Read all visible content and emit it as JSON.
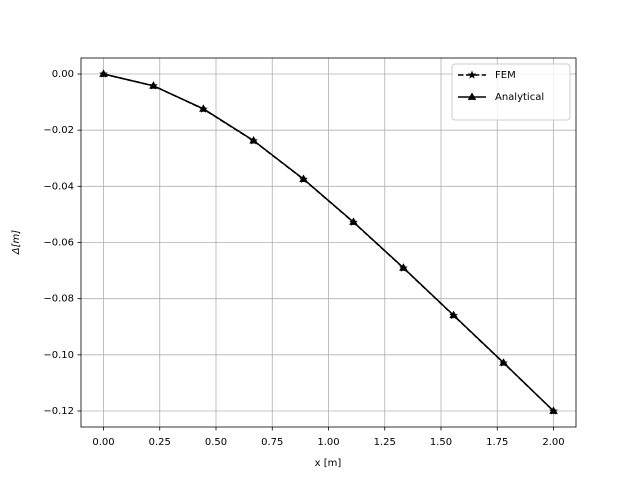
{
  "chart_data": {
    "type": "line",
    "xlabel": "x [m]",
    "ylabel": "Δ[m]",
    "x": [
      0,
      0.222,
      0.444,
      0.667,
      0.889,
      1.111,
      1.333,
      1.556,
      1.778,
      2.0
    ],
    "series": [
      {
        "name": "FEM",
        "color": "#000000",
        "linestyle": "dashed",
        "marker": "star",
        "values": [
          0,
          -0.0042,
          -0.0125,
          -0.0238,
          -0.0375,
          -0.0528,
          -0.0691,
          -0.086,
          -0.1029,
          -0.12
        ]
      },
      {
        "name": "Analytical",
        "color": "#000000",
        "linestyle": "solid",
        "marker": "triangle",
        "values": [
          0,
          -0.0042,
          -0.0124,
          -0.0237,
          -0.0374,
          -0.0527,
          -0.069,
          -0.0859,
          -0.1028,
          -0.12
        ]
      }
    ],
    "xlim": [
      -0.1,
      2.1
    ],
    "ylim": [
      -0.1257,
      0.0057
    ],
    "xticks": [
      {
        "value": 0,
        "label": "0.00"
      },
      {
        "value": 0.25,
        "label": "0.25"
      },
      {
        "value": 0.5,
        "label": "0.50"
      },
      {
        "value": 0.75,
        "label": "0.75"
      },
      {
        "value": 1.0,
        "label": "1.00"
      },
      {
        "value": 1.25,
        "label": "1.25"
      },
      {
        "value": 1.5,
        "label": "1.50"
      },
      {
        "value": 1.75,
        "label": "1.75"
      },
      {
        "value": 2.0,
        "label": "2.00"
      }
    ],
    "yticks": [
      {
        "value": 0,
        "label": "0.00"
      },
      {
        "value": -0.02,
        "label": "−0.02"
      },
      {
        "value": -0.04,
        "label": "−0.04"
      },
      {
        "value": -0.06,
        "label": "−0.06"
      },
      {
        "value": -0.08,
        "label": "−0.08"
      },
      {
        "value": -0.1,
        "label": "−0.10"
      },
      {
        "value": -0.12,
        "label": "−0.12"
      }
    ],
    "grid": true,
    "legend": "upper right"
  }
}
